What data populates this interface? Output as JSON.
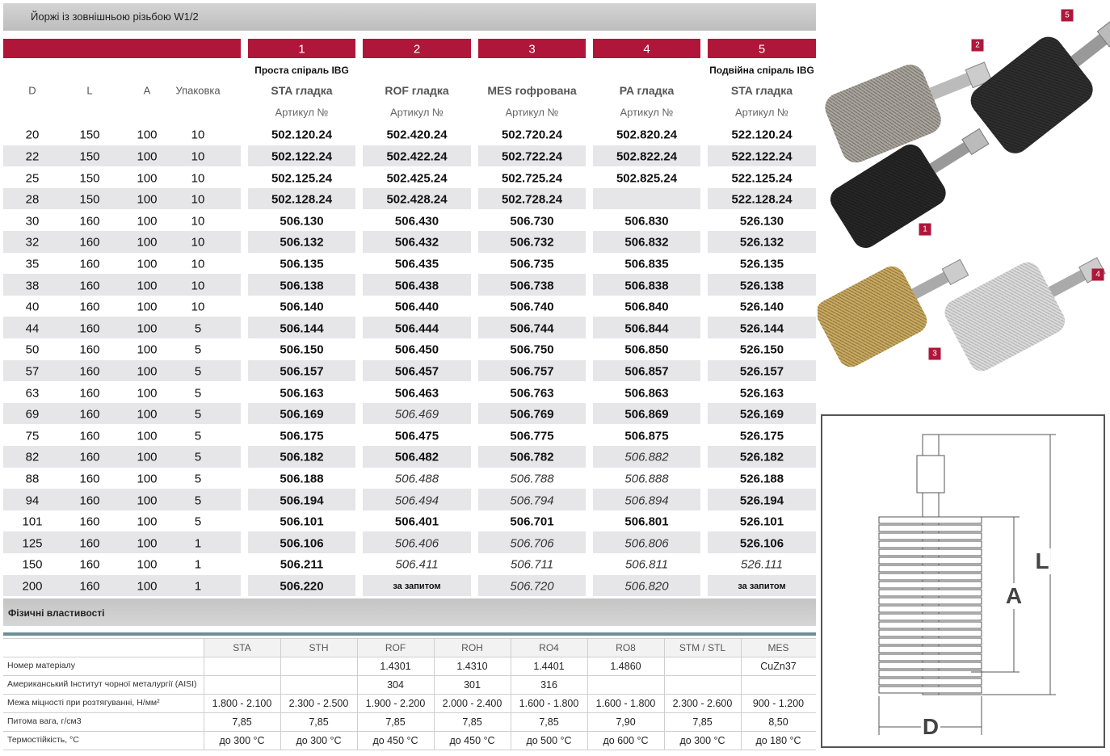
{
  "header": {
    "title": "Йоржі із зовнішньою різьбою W1/2"
  },
  "table": {
    "groups": [
      1,
      2,
      3,
      4,
      5
    ],
    "spiral_notes": [
      "Проста спіраль IBG",
      null,
      null,
      null,
      "Подвійна спіраль IBG"
    ],
    "columns": [
      "D",
      "L",
      "A",
      "Упаковка",
      "STA гладка",
      "ROF гладка",
      "MES гофрована",
      "PA гладка",
      "STA гладка"
    ],
    "article_labels": [
      "Артикул №",
      "Артикул №",
      "Артикул №",
      "Артикул №",
      "Артикул №"
    ],
    "rows": [
      [
        20,
        150,
        100,
        10,
        "502.120.24",
        "502.420.24",
        "502.720.24",
        "502.820.24",
        "522.120.24"
      ],
      [
        22,
        150,
        100,
        10,
        "502.122.24",
        "502.422.24",
        "502.722.24",
        "502.822.24",
        "522.122.24"
      ],
      [
        25,
        150,
        100,
        10,
        "502.125.24",
        "502.425.24",
        "502.725.24",
        "502.825.24",
        "522.125.24"
      ],
      [
        28,
        150,
        100,
        10,
        "502.128.24",
        "502.428.24",
        "502.728.24",
        null,
        "522.128.24"
      ],
      [
        30,
        160,
        100,
        10,
        "506.130",
        "506.430",
        "506.730",
        "506.830",
        "526.130"
      ],
      [
        32,
        160,
        100,
        10,
        "506.132",
        "506.432",
        "506.732",
        "506.832",
        "526.132"
      ],
      [
        35,
        160,
        100,
        10,
        "506.135",
        "506.435",
        "506.735",
        "506.835",
        "526.135"
      ],
      [
        38,
        160,
        100,
        10,
        "506.138",
        "506.438",
        "506.738",
        "506.838",
        "526.138"
      ],
      [
        40,
        160,
        100,
        10,
        "506.140",
        "506.440",
        "506.740",
        "506.840",
        "526.140"
      ],
      [
        44,
        160,
        100,
        5,
        "506.144",
        "506.444",
        "506.744",
        "506.844",
        "526.144"
      ],
      [
        50,
        160,
        100,
        5,
        "506.150",
        "506.450",
        "506.750",
        "506.850",
        "526.150"
      ],
      [
        57,
        160,
        100,
        5,
        "506.157",
        "506.457",
        "506.757",
        "506.857",
        "526.157"
      ],
      [
        63,
        160,
        100,
        5,
        "506.163",
        "506.463",
        "506.763",
        "506.863",
        "526.163"
      ],
      [
        69,
        160,
        100,
        5,
        "506.169",
        {
          "text": "506.469",
          "italic": true
        },
        "506.769",
        "506.869",
        "526.169"
      ],
      [
        75,
        160,
        100,
        5,
        "506.175",
        "506.475",
        "506.775",
        "506.875",
        "526.175"
      ],
      [
        82,
        160,
        100,
        5,
        "506.182",
        "506.482",
        "506.782",
        {
          "text": "506.882",
          "italic": true
        },
        "526.182"
      ],
      [
        88,
        160,
        100,
        5,
        "506.188",
        {
          "text": "506.488",
          "italic": true
        },
        {
          "text": "506.788",
          "italic": true
        },
        {
          "text": "506.888",
          "italic": true
        },
        "526.188"
      ],
      [
        94,
        160,
        100,
        5,
        "506.194",
        {
          "text": "506.494",
          "italic": true
        },
        {
          "text": "506.794",
          "italic": true
        },
        {
          "text": "506.894",
          "italic": true
        },
        "526.194"
      ],
      [
        101,
        160,
        100,
        5,
        "506.101",
        "506.401",
        "506.701",
        "506.801",
        "526.101"
      ],
      [
        125,
        160,
        100,
        1,
        "506.106",
        {
          "text": "506.406",
          "italic": true
        },
        {
          "text": "506.706",
          "italic": true
        },
        {
          "text": "506.806",
          "italic": true
        },
        "526.106"
      ],
      [
        150,
        160,
        100,
        1,
        "506.211",
        {
          "text": "506.411",
          "italic": true
        },
        {
          "text": "506.711",
          "italic": true
        },
        {
          "text": "506.811",
          "italic": true
        },
        {
          "text": "526.111",
          "italic": true
        }
      ],
      [
        200,
        160,
        100,
        1,
        "506.220",
        "за запитом",
        {
          "text": "506.720",
          "italic": true
        },
        {
          "text": "506.820",
          "italic": true
        },
        "за запитом"
      ]
    ]
  },
  "properties": {
    "title": "Фізичні властивості",
    "columns": [
      "STA",
      "STH",
      "ROF",
      "ROH",
      "RO4",
      "RO8",
      "STM / STL",
      "MES"
    ],
    "rows": [
      {
        "label": "Номер матеріалу",
        "values": [
          null,
          null,
          "1.4301",
          "1.4310",
          "1.4401",
          "1.4860",
          null,
          "CuZn37"
        ]
      },
      {
        "label": "Американський Інститут чорної металургії (AISI)",
        "values": [
          null,
          null,
          "304",
          "301",
          "316",
          null,
          null,
          null
        ]
      },
      {
        "label": "Межа міцності при розтягуванні, Н/мм²",
        "values": [
          "1.800 - 2.100",
          "2.300 - 2.500",
          "1.900 - 2.200",
          "2.000 - 2.400",
          "1.600 - 1.800",
          "1.600 - 1.800",
          "2.300 - 2.600",
          "900 - 1.200"
        ]
      },
      {
        "label": "Питома вага, г/см3",
        "values": [
          "7,85",
          "7,85",
          "7,85",
          "7,85",
          "7,85",
          "7,90",
          "7,85",
          "8,50"
        ]
      },
      {
        "label": "Термостійкість, °C",
        "values": [
          "до 300 °C",
          "до 300 °C",
          "до 450 °C",
          "до 450 °C",
          "до 500 °C",
          "до 600 °C",
          "до 300 °C",
          "до 180 °C"
        ]
      }
    ]
  },
  "photos": {
    "labels": [
      2,
      5,
      1,
      4,
      3
    ]
  },
  "diagram": {
    "labels": [
      "L",
      "A",
      "D"
    ]
  }
}
